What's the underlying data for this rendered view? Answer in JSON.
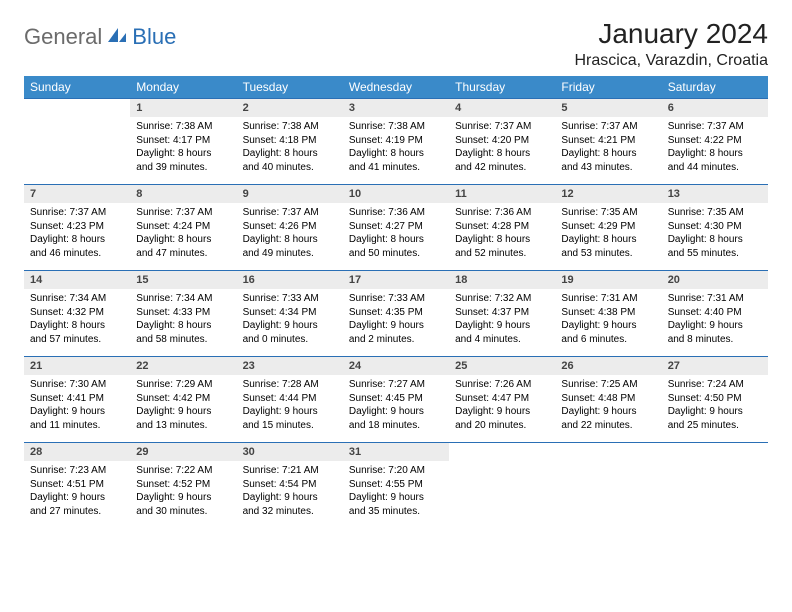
{
  "brand": {
    "word1": "General",
    "word2": "Blue"
  },
  "title": "January 2024",
  "location": "Hrascica, Varazdin, Croatia",
  "colors": {
    "header_bg": "#3a8ac9",
    "header_text": "#ffffff",
    "daynum_bg": "#ececec",
    "rule": "#2a6fb5",
    "logo_gray": "#6b6b6b",
    "logo_blue": "#2a6fb5",
    "page_bg": "#ffffff",
    "body_text": "#000000"
  },
  "typography": {
    "title_fontsize_pt": 21,
    "location_fontsize_pt": 12,
    "header_fontsize_pt": 9,
    "daynum_fontsize_pt": 8.5,
    "body_fontsize_pt": 7.5
  },
  "weekdays": [
    "Sunday",
    "Monday",
    "Tuesday",
    "Wednesday",
    "Thursday",
    "Friday",
    "Saturday"
  ],
  "weeks": [
    [
      null,
      {
        "n": "1",
        "sunrise": "Sunrise: 7:38 AM",
        "sunset": "Sunset: 4:17 PM",
        "daylight": "Daylight: 8 hours and 39 minutes."
      },
      {
        "n": "2",
        "sunrise": "Sunrise: 7:38 AM",
        "sunset": "Sunset: 4:18 PM",
        "daylight": "Daylight: 8 hours and 40 minutes."
      },
      {
        "n": "3",
        "sunrise": "Sunrise: 7:38 AM",
        "sunset": "Sunset: 4:19 PM",
        "daylight": "Daylight: 8 hours and 41 minutes."
      },
      {
        "n": "4",
        "sunrise": "Sunrise: 7:37 AM",
        "sunset": "Sunset: 4:20 PM",
        "daylight": "Daylight: 8 hours and 42 minutes."
      },
      {
        "n": "5",
        "sunrise": "Sunrise: 7:37 AM",
        "sunset": "Sunset: 4:21 PM",
        "daylight": "Daylight: 8 hours and 43 minutes."
      },
      {
        "n": "6",
        "sunrise": "Sunrise: 7:37 AM",
        "sunset": "Sunset: 4:22 PM",
        "daylight": "Daylight: 8 hours and 44 minutes."
      }
    ],
    [
      {
        "n": "7",
        "sunrise": "Sunrise: 7:37 AM",
        "sunset": "Sunset: 4:23 PM",
        "daylight": "Daylight: 8 hours and 46 minutes."
      },
      {
        "n": "8",
        "sunrise": "Sunrise: 7:37 AM",
        "sunset": "Sunset: 4:24 PM",
        "daylight": "Daylight: 8 hours and 47 minutes."
      },
      {
        "n": "9",
        "sunrise": "Sunrise: 7:37 AM",
        "sunset": "Sunset: 4:26 PM",
        "daylight": "Daylight: 8 hours and 49 minutes."
      },
      {
        "n": "10",
        "sunrise": "Sunrise: 7:36 AM",
        "sunset": "Sunset: 4:27 PM",
        "daylight": "Daylight: 8 hours and 50 minutes."
      },
      {
        "n": "11",
        "sunrise": "Sunrise: 7:36 AM",
        "sunset": "Sunset: 4:28 PM",
        "daylight": "Daylight: 8 hours and 52 minutes."
      },
      {
        "n": "12",
        "sunrise": "Sunrise: 7:35 AM",
        "sunset": "Sunset: 4:29 PM",
        "daylight": "Daylight: 8 hours and 53 minutes."
      },
      {
        "n": "13",
        "sunrise": "Sunrise: 7:35 AM",
        "sunset": "Sunset: 4:30 PM",
        "daylight": "Daylight: 8 hours and 55 minutes."
      }
    ],
    [
      {
        "n": "14",
        "sunrise": "Sunrise: 7:34 AM",
        "sunset": "Sunset: 4:32 PM",
        "daylight": "Daylight: 8 hours and 57 minutes."
      },
      {
        "n": "15",
        "sunrise": "Sunrise: 7:34 AM",
        "sunset": "Sunset: 4:33 PM",
        "daylight": "Daylight: 8 hours and 58 minutes."
      },
      {
        "n": "16",
        "sunrise": "Sunrise: 7:33 AM",
        "sunset": "Sunset: 4:34 PM",
        "daylight": "Daylight: 9 hours and 0 minutes."
      },
      {
        "n": "17",
        "sunrise": "Sunrise: 7:33 AM",
        "sunset": "Sunset: 4:35 PM",
        "daylight": "Daylight: 9 hours and 2 minutes."
      },
      {
        "n": "18",
        "sunrise": "Sunrise: 7:32 AM",
        "sunset": "Sunset: 4:37 PM",
        "daylight": "Daylight: 9 hours and 4 minutes."
      },
      {
        "n": "19",
        "sunrise": "Sunrise: 7:31 AM",
        "sunset": "Sunset: 4:38 PM",
        "daylight": "Daylight: 9 hours and 6 minutes."
      },
      {
        "n": "20",
        "sunrise": "Sunrise: 7:31 AM",
        "sunset": "Sunset: 4:40 PM",
        "daylight": "Daylight: 9 hours and 8 minutes."
      }
    ],
    [
      {
        "n": "21",
        "sunrise": "Sunrise: 7:30 AM",
        "sunset": "Sunset: 4:41 PM",
        "daylight": "Daylight: 9 hours and 11 minutes."
      },
      {
        "n": "22",
        "sunrise": "Sunrise: 7:29 AM",
        "sunset": "Sunset: 4:42 PM",
        "daylight": "Daylight: 9 hours and 13 minutes."
      },
      {
        "n": "23",
        "sunrise": "Sunrise: 7:28 AM",
        "sunset": "Sunset: 4:44 PM",
        "daylight": "Daylight: 9 hours and 15 minutes."
      },
      {
        "n": "24",
        "sunrise": "Sunrise: 7:27 AM",
        "sunset": "Sunset: 4:45 PM",
        "daylight": "Daylight: 9 hours and 18 minutes."
      },
      {
        "n": "25",
        "sunrise": "Sunrise: 7:26 AM",
        "sunset": "Sunset: 4:47 PM",
        "daylight": "Daylight: 9 hours and 20 minutes."
      },
      {
        "n": "26",
        "sunrise": "Sunrise: 7:25 AM",
        "sunset": "Sunset: 4:48 PM",
        "daylight": "Daylight: 9 hours and 22 minutes."
      },
      {
        "n": "27",
        "sunrise": "Sunrise: 7:24 AM",
        "sunset": "Sunset: 4:50 PM",
        "daylight": "Daylight: 9 hours and 25 minutes."
      }
    ],
    [
      {
        "n": "28",
        "sunrise": "Sunrise: 7:23 AM",
        "sunset": "Sunset: 4:51 PM",
        "daylight": "Daylight: 9 hours and 27 minutes."
      },
      {
        "n": "29",
        "sunrise": "Sunrise: 7:22 AM",
        "sunset": "Sunset: 4:52 PM",
        "daylight": "Daylight: 9 hours and 30 minutes."
      },
      {
        "n": "30",
        "sunrise": "Sunrise: 7:21 AM",
        "sunset": "Sunset: 4:54 PM",
        "daylight": "Daylight: 9 hours and 32 minutes."
      },
      {
        "n": "31",
        "sunrise": "Sunrise: 7:20 AM",
        "sunset": "Sunset: 4:55 PM",
        "daylight": "Daylight: 9 hours and 35 minutes."
      },
      null,
      null,
      null
    ]
  ]
}
